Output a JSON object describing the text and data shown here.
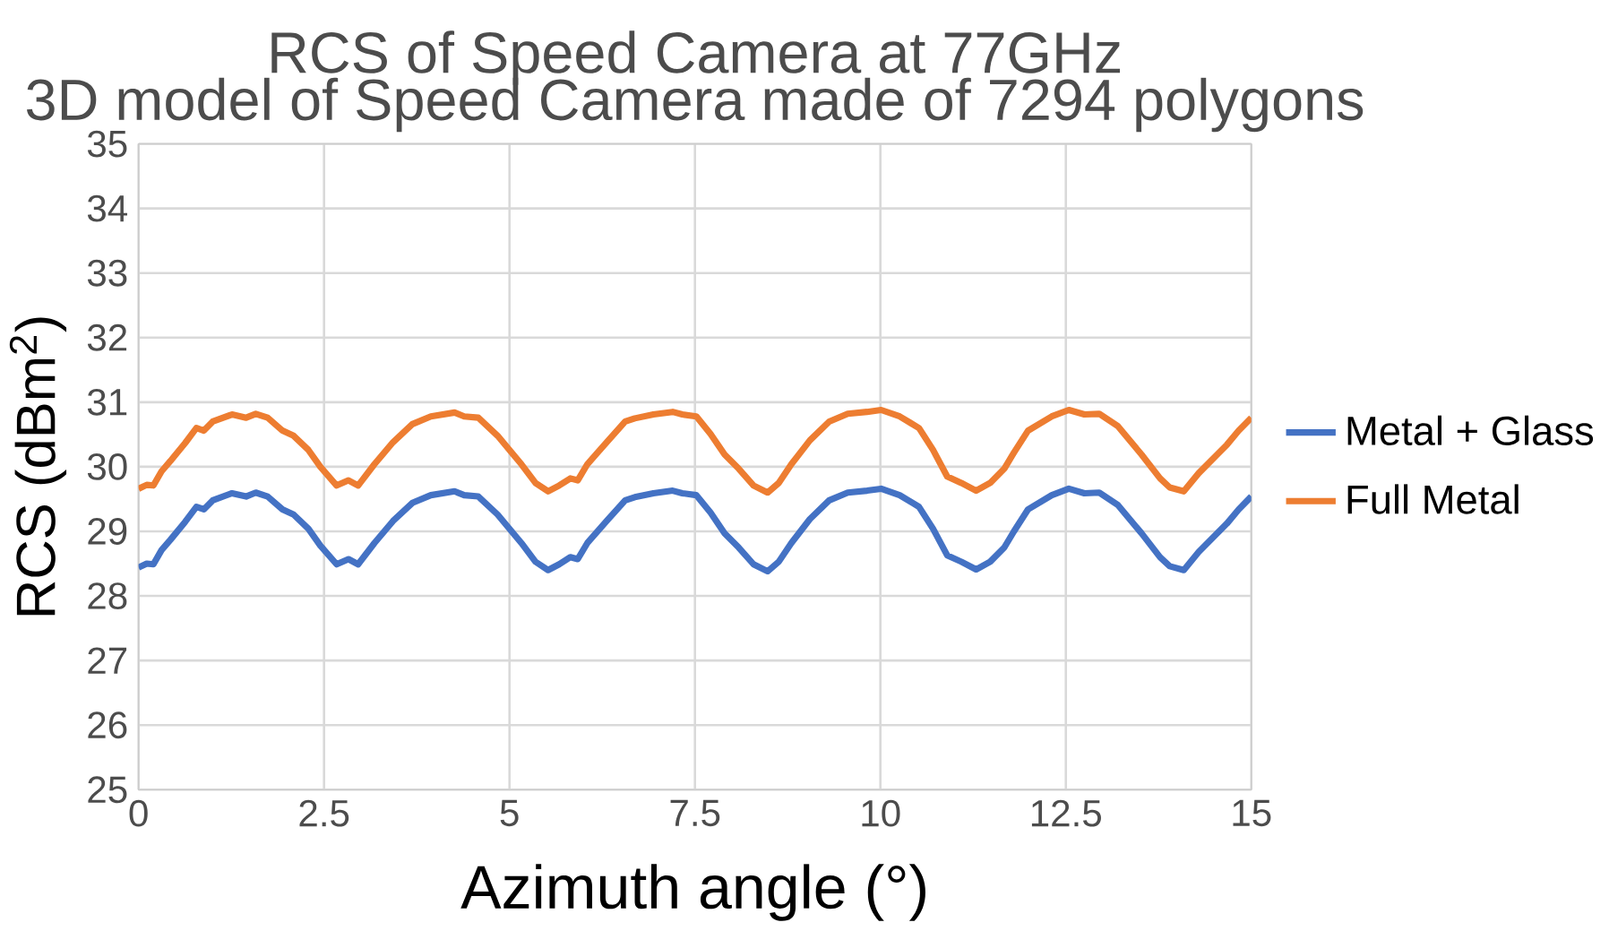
{
  "chart_data": {
    "type": "line",
    "title": "RCS of Speed Camera at 77GHz",
    "subtitle": "3D model of Speed Camera made of 7294 polygons",
    "xlabel": "Azimuth angle (°)",
    "ylabel": "RCS (dBm$^{2}$)",
    "x": [
      0,
      0.11,
      0.2,
      0.31,
      0.43,
      0.63,
      0.78,
      0.88,
      1.0,
      1.26,
      1.45,
      1.58,
      1.74,
      1.94,
      2.09,
      2.29,
      2.45,
      2.67,
      2.83,
      2.96,
      3.18,
      3.43,
      3.69,
      3.94,
      4.26,
      4.39,
      4.58,
      4.84,
      5.16,
      5.35,
      5.52,
      5.67,
      5.82,
      5.92,
      6.05,
      6.31,
      6.56,
      6.69,
      6.94,
      7.2,
      7.33,
      7.52,
      7.71,
      7.9,
      8.09,
      8.29,
      8.48,
      8.63,
      8.8,
      9.05,
      9.31,
      9.56,
      9.82,
      10.01,
      10.26,
      10.52,
      10.71,
      10.9,
      11.09,
      11.29,
      11.48,
      11.67,
      11.8,
      11.99,
      12.31,
      12.54,
      12.75,
      12.95,
      13.2,
      13.52,
      13.77,
      13.9,
      14.09,
      14.29,
      14.48,
      14.67,
      14.83,
      15
    ],
    "series": [
      {
        "name": "Metal + Glass",
        "color": "#4472c4",
        "values": [
          28.44,
          28.5,
          28.49,
          28.71,
          28.87,
          29.15,
          29.38,
          29.34,
          29.48,
          29.59,
          29.54,
          29.6,
          29.54,
          29.34,
          29.26,
          29.04,
          28.78,
          28.49,
          28.57,
          28.49,
          28.82,
          29.16,
          29.44,
          29.56,
          29.62,
          29.56,
          29.54,
          29.26,
          28.82,
          28.53,
          28.4,
          28.49,
          28.6,
          28.57,
          28.82,
          29.16,
          29.48,
          29.53,
          29.59,
          29.63,
          29.59,
          29.56,
          29.29,
          28.97,
          28.75,
          28.49,
          28.38,
          28.53,
          28.82,
          29.19,
          29.48,
          29.6,
          29.63,
          29.66,
          29.56,
          29.38,
          29.04,
          28.63,
          28.53,
          28.41,
          28.53,
          28.75,
          29.0,
          29.34,
          29.56,
          29.66,
          29.59,
          29.6,
          29.41,
          28.97,
          28.6,
          28.46,
          28.4,
          28.68,
          28.9,
          29.12,
          29.34,
          29.54
        ]
      },
      {
        "name": "Full Metal",
        "color": "#ed7d31",
        "values": [
          29.66,
          29.72,
          29.71,
          29.93,
          30.09,
          30.37,
          30.6,
          30.56,
          30.7,
          30.81,
          30.76,
          30.82,
          30.76,
          30.56,
          30.48,
          30.26,
          30.0,
          29.71,
          29.79,
          29.71,
          30.04,
          30.38,
          30.66,
          30.78,
          30.84,
          30.78,
          30.76,
          30.48,
          30.04,
          29.75,
          29.62,
          29.71,
          29.82,
          29.79,
          30.04,
          30.38,
          30.7,
          30.75,
          30.81,
          30.85,
          30.81,
          30.78,
          30.51,
          30.19,
          29.97,
          29.71,
          29.6,
          29.75,
          30.04,
          30.41,
          30.7,
          30.82,
          30.85,
          30.88,
          30.78,
          30.6,
          30.26,
          29.85,
          29.75,
          29.63,
          29.75,
          29.97,
          30.22,
          30.56,
          30.78,
          30.88,
          30.81,
          30.82,
          30.63,
          30.19,
          29.82,
          29.68,
          29.62,
          29.9,
          30.12,
          30.34,
          30.56,
          30.76
        ]
      }
    ],
    "xlim": [
      0,
      15
    ],
    "xticks": [
      0,
      2.5,
      5,
      7.5,
      10,
      12.5,
      15
    ],
    "ylim": [
      25,
      35
    ],
    "yticks": [
      25,
      26,
      27,
      28,
      29,
      30,
      31,
      32,
      33,
      34,
      35
    ],
    "grid": true,
    "legend": "right",
    "marker": "none",
    "line_style": "solid"
  }
}
